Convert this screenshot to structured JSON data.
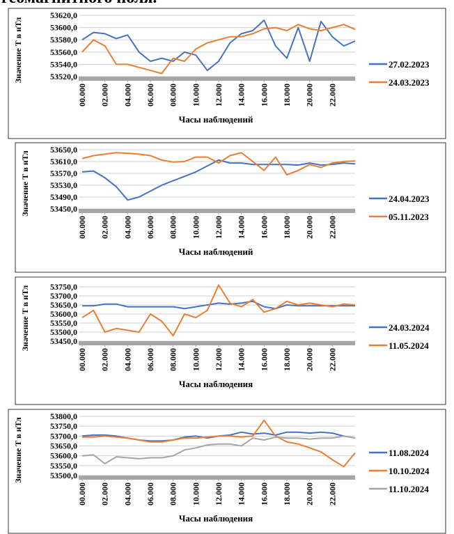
{
  "header": {
    "text": "геомагнитного поля."
  },
  "chart_data": [
    {
      "type": "line",
      "x_label": "Часы наблюдений",
      "y_label": "Значение Т в нТл",
      "x": [
        0,
        1,
        2,
        3,
        4,
        5,
        6,
        7,
        8,
        9,
        10,
        11,
        12,
        13,
        14,
        15,
        16,
        17,
        18,
        19,
        20,
        21,
        22,
        23,
        24
      ],
      "xlim": [
        0,
        24
      ],
      "xticks": [
        {
          "value": 0,
          "label": "00.000"
        },
        {
          "value": 2,
          "label": "02.000"
        },
        {
          "value": 4,
          "label": "04.000"
        },
        {
          "value": 6,
          "label": "06.000"
        },
        {
          "value": 8,
          "label": "08.000"
        },
        {
          "value": 10,
          "label": "10.000"
        },
        {
          "value": 12,
          "label": "12.000"
        },
        {
          "value": 14,
          "label": "14.000"
        },
        {
          "value": 16,
          "label": "16.000"
        },
        {
          "value": 18,
          "label": "18.000"
        },
        {
          "value": 20,
          "label": "20.000"
        },
        {
          "value": 22,
          "label": "22.000"
        }
      ],
      "ylim": [
        53520,
        53620
      ],
      "yticks": [
        {
          "value": 53520,
          "label": "53520,0"
        },
        {
          "value": 53540,
          "label": "53540,0"
        },
        {
          "value": 53560,
          "label": "53560,0"
        },
        {
          "value": 53580,
          "label": "53580,0"
        },
        {
          "value": 53600,
          "label": "53600,0"
        },
        {
          "value": 53620,
          "label": "53620,0"
        }
      ],
      "grid": true,
      "series": [
        {
          "name": "27.02.2023",
          "color": "#4472c4",
          "values": [
            53580,
            53592,
            53590,
            53582,
            53588,
            53560,
            53545,
            53550,
            53545,
            53560,
            53555,
            53530,
            53545,
            53575,
            53590,
            53595,
            53612,
            53570,
            53550,
            53600,
            53545,
            53610,
            53585,
            53570,
            53578
          ]
        },
        {
          "name": "24.03.2023",
          "color": "#ed7d31",
          "values": [
            53560,
            53580,
            53570,
            53540,
            53540,
            53535,
            53530,
            53525,
            53550,
            53545,
            53565,
            53575,
            53580,
            53585,
            53585,
            53590,
            53598,
            53600,
            53595,
            53605,
            53598,
            53595,
            53600,
            53605,
            53597
          ]
        }
      ]
    },
    {
      "type": "line",
      "x_label": "Часы наблюдений",
      "y_label": "Значение Т в нТл",
      "x": [
        0,
        1,
        2,
        3,
        4,
        5,
        6,
        7,
        8,
        9,
        10,
        11,
        12,
        13,
        14,
        15,
        16,
        17,
        18,
        19,
        20,
        21,
        22,
        23,
        24
      ],
      "xlim": [
        0,
        24
      ],
      "xticks": [
        {
          "value": 0,
          "label": "00.000"
        },
        {
          "value": 2,
          "label": "02.000"
        },
        {
          "value": 4,
          "label": "04.000"
        },
        {
          "value": 6,
          "label": "06.000"
        },
        {
          "value": 8,
          "label": "08.000"
        },
        {
          "value": 10,
          "label": "10.000"
        },
        {
          "value": 12,
          "label": "12.000"
        },
        {
          "value": 14,
          "label": "14.000"
        },
        {
          "value": 16,
          "label": "16.000"
        },
        {
          "value": 18,
          "label": "18.000"
        },
        {
          "value": 20,
          "label": "20.000"
        },
        {
          "value": 22,
          "label": "22.000"
        }
      ],
      "ylim": [
        53450,
        53650
      ],
      "yticks": [
        {
          "value": 53450,
          "label": "53450,0"
        },
        {
          "value": 53490,
          "label": "53490,0"
        },
        {
          "value": 53530,
          "label": "53530,0"
        },
        {
          "value": 53570,
          "label": "53570,0"
        },
        {
          "value": 53610,
          "label": "53610,0"
        },
        {
          "value": 53650,
          "label": "53650,0"
        }
      ],
      "grid": true,
      "series": [
        {
          "name": "24.04.2023",
          "color": "#4472c4",
          "values": [
            53575,
            53578,
            53555,
            53525,
            53480,
            53490,
            53510,
            53530,
            53545,
            53560,
            53575,
            53595,
            53615,
            53605,
            53605,
            53600,
            53600,
            53600,
            53600,
            53598,
            53605,
            53598,
            53600,
            53605,
            53602
          ]
        },
        {
          "name": "05.11.2023",
          "color": "#ed7d31",
          "values": [
            53620,
            53630,
            53635,
            53640,
            53638,
            53635,
            53630,
            53615,
            53608,
            53610,
            53625,
            53625,
            53605,
            53630,
            53640,
            53610,
            53580,
            53625,
            53565,
            53580,
            53600,
            53590,
            53605,
            53610,
            53612
          ]
        }
      ]
    },
    {
      "type": "line",
      "x_label": "Часы наблюдения",
      "y_label": "Значение Т в нТл",
      "x": [
        0,
        1,
        2,
        3,
        4,
        5,
        6,
        7,
        8,
        9,
        10,
        11,
        12,
        13,
        14,
        15,
        16,
        17,
        18,
        19,
        20,
        21,
        22,
        23,
        24
      ],
      "xlim": [
        0,
        24
      ],
      "xticks": [
        {
          "value": 0,
          "label": "00.000"
        },
        {
          "value": 2,
          "label": "02.000"
        },
        {
          "value": 4,
          "label": "04.000"
        },
        {
          "value": 6,
          "label": "06.000"
        },
        {
          "value": 8,
          "label": "08.000"
        },
        {
          "value": 10,
          "label": "10.000"
        },
        {
          "value": 12,
          "label": "12.000"
        },
        {
          "value": 14,
          "label": "14.000"
        },
        {
          "value": 16,
          "label": "16.000"
        },
        {
          "value": 18,
          "label": "18.000"
        },
        {
          "value": 20,
          "label": "20.000"
        },
        {
          "value": 22,
          "label": "22.000"
        }
      ],
      "ylim": [
        53450,
        53750
      ],
      "yticks": [
        {
          "value": 53450,
          "label": "53450,0"
        },
        {
          "value": 53500,
          "label": "53500,0"
        },
        {
          "value": 53550,
          "label": "53550,0"
        },
        {
          "value": 53600,
          "label": "53600,0"
        },
        {
          "value": 53650,
          "label": "53650,0"
        },
        {
          "value": 53700,
          "label": "53700,0"
        },
        {
          "value": 53750,
          "label": "53750,0"
        }
      ],
      "grid": true,
      "series": [
        {
          "name": "24.03.2024",
          "color": "#4472c4",
          "values": [
            53645,
            53645,
            53655,
            53655,
            53640,
            53640,
            53640,
            53640,
            53640,
            53630,
            53640,
            53650,
            53660,
            53655,
            53660,
            53670,
            53640,
            53630,
            53650,
            53645,
            53645,
            53645,
            53645,
            53645,
            53645
          ]
        },
        {
          "name": "11.05.2024",
          "color": "#ed7d31",
          "values": [
            53580,
            53620,
            53500,
            53520,
            53510,
            53500,
            53600,
            53560,
            53480,
            53600,
            53580,
            53620,
            53760,
            53660,
            53640,
            53680,
            53610,
            53630,
            53670,
            53650,
            53660,
            53650,
            53640,
            53655,
            53650
          ]
        }
      ]
    },
    {
      "type": "line",
      "x_label": "Часы наблюдения",
      "y_label": "Значение Т в нТл",
      "x": [
        0,
        1,
        2,
        3,
        4,
        5,
        6,
        7,
        8,
        9,
        10,
        11,
        12,
        13,
        14,
        15,
        16,
        17,
        18,
        19,
        20,
        21,
        22,
        23,
        24
      ],
      "xlim": [
        0,
        24
      ],
      "xticks": [
        {
          "value": 0,
          "label": "00.000"
        },
        {
          "value": 2,
          "label": "02.000"
        },
        {
          "value": 4,
          "label": "04.000"
        },
        {
          "value": 6,
          "label": "06.000"
        },
        {
          "value": 8,
          "label": "08.000"
        },
        {
          "value": 10,
          "label": "10.000"
        },
        {
          "value": 12,
          "label": "12.000"
        },
        {
          "value": 14,
          "label": "14.000"
        },
        {
          "value": 16,
          "label": "16.000"
        },
        {
          "value": 18,
          "label": "18.000"
        },
        {
          "value": 20,
          "label": "20.000"
        },
        {
          "value": 22,
          "label": "22.000"
        }
      ],
      "ylim": [
        53500,
        53800
      ],
      "yticks": [
        {
          "value": 53500,
          "label": "53500,0"
        },
        {
          "value": 53550,
          "label": "53550,0"
        },
        {
          "value": 53600,
          "label": "53600,0"
        },
        {
          "value": 53650,
          "label": "53650,0"
        },
        {
          "value": 53700,
          "label": "53700,0"
        },
        {
          "value": 53750,
          "label": "53750,0"
        },
        {
          "value": 53800,
          "label": "53800,0"
        }
      ],
      "grid": true,
      "series": [
        {
          "name": "11.08.2024",
          "color": "#4472c4",
          "values": [
            53700,
            53705,
            53705,
            53700,
            53690,
            53680,
            53675,
            53675,
            53680,
            53695,
            53700,
            53690,
            53700,
            53705,
            53720,
            53710,
            53715,
            53705,
            53720,
            53720,
            53715,
            53720,
            53715,
            53700,
            53690
          ]
        },
        {
          "name": "10.10.2024",
          "color": "#ed7d31",
          "values": [
            53695,
            53695,
            53700,
            53695,
            53690,
            53680,
            53670,
            53670,
            53680,
            53690,
            53690,
            53695,
            53700,
            53700,
            53695,
            53700,
            53780,
            53700,
            53670,
            53660,
            53640,
            53620,
            53580,
            53545,
            53615
          ]
        },
        {
          "name": "11.10.2024",
          "color": "#a5a5a5",
          "values": [
            53600,
            53605,
            53560,
            53595,
            53590,
            53585,
            53590,
            53590,
            53600,
            53630,
            53640,
            53655,
            53660,
            53660,
            53650,
            53690,
            53680,
            53695,
            53690,
            53690,
            53685,
            53690,
            53690,
            53700,
            53690
          ]
        }
      ]
    }
  ]
}
